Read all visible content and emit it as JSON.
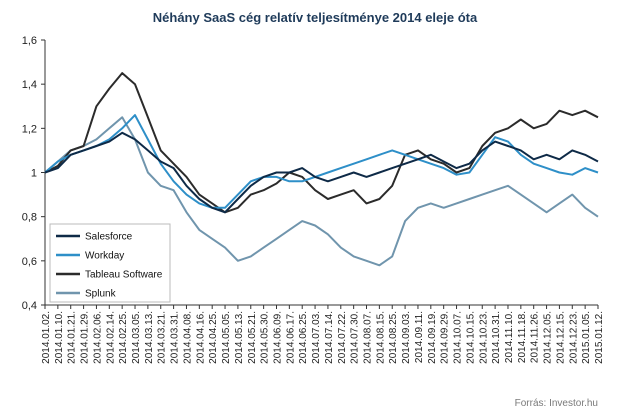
{
  "chart_data": {
    "type": "line",
    "title": "Néhány SaaS cég relatív teljesítménye  2014 eleje óta",
    "source": "Forrás: Investor.hu",
    "ylim": [
      0.4,
      1.6
    ],
    "y_ticks": [
      "0,4",
      "0,6",
      "0,8",
      "1",
      "1,2",
      "1,4",
      "1,6"
    ],
    "y_tick_values": [
      0.4,
      0.6,
      0.8,
      1.0,
      1.2,
      1.4,
      1.6
    ],
    "x": [
      "2014.01.02.",
      "2014.01.10.",
      "2014.01.21.",
      "2014.01.29.",
      "2014.02.06.",
      "2014.02.14.",
      "2014.02.25.",
      "2014.03.05.",
      "2014.03.13.",
      "2014.03.21.",
      "2014.03.31.",
      "2014.04.08.",
      "2014.04.16.",
      "2014.04.25.",
      "2014.05.05.",
      "2014.05.13.",
      "2014.05.21.",
      "2014.05.30.",
      "2014.06.09.",
      "2014.06.17.",
      "2014.06.25.",
      "2014.07.03.",
      "2014.07.14.",
      "2014.07.22.",
      "2014.07.30.",
      "2014.08.07.",
      "2014.08.15.",
      "2014.08.25.",
      "2014.09.03.",
      "2014.09.11.",
      "2014.09.19.",
      "2014.09.29.",
      "2014.10.07.",
      "2014.10.15.",
      "2014.10.23.",
      "2014.10.31.",
      "2014.11.10.",
      "2014.11.18.",
      "2014.11.26.",
      "2014.12.05.",
      "2014.12.15.",
      "2014.12.23.",
      "2015.01.05.",
      "2015.01.12."
    ],
    "legend_position": "lower-left",
    "grid": false,
    "series": [
      {
        "name": "Salesforce",
        "color": "#0e2a47",
        "values": [
          1.0,
          1.02,
          1.08,
          1.1,
          1.12,
          1.14,
          1.18,
          1.15,
          1.1,
          1.05,
          1.02,
          0.94,
          0.88,
          0.84,
          0.82,
          0.88,
          0.94,
          0.98,
          1.0,
          1.0,
          1.02,
          0.98,
          0.96,
          0.98,
          1.0,
          0.98,
          1.0,
          1.02,
          1.04,
          1.06,
          1.08,
          1.05,
          1.02,
          1.04,
          1.1,
          1.14,
          1.12,
          1.1,
          1.06,
          1.08,
          1.06,
          1.1,
          1.08,
          1.05
        ]
      },
      {
        "name": "Workday",
        "color": "#2e8fc8",
        "values": [
          1.0,
          1.05,
          1.08,
          1.1,
          1.12,
          1.15,
          1.2,
          1.26,
          1.15,
          1.04,
          0.96,
          0.9,
          0.86,
          0.84,
          0.84,
          0.9,
          0.96,
          0.98,
          0.98,
          0.96,
          0.96,
          0.98,
          1.0,
          1.02,
          1.04,
          1.06,
          1.08,
          1.1,
          1.08,
          1.06,
          1.04,
          1.02,
          0.99,
          1.0,
          1.08,
          1.16,
          1.14,
          1.08,
          1.04,
          1.02,
          1.0,
          0.99,
          1.02,
          1.0
        ]
      },
      {
        "name": "Tableau Software",
        "color": "#2b2b2b",
        "values": [
          1.0,
          1.03,
          1.1,
          1.12,
          1.3,
          1.38,
          1.45,
          1.4,
          1.25,
          1.1,
          1.04,
          0.98,
          0.9,
          0.86,
          0.82,
          0.84,
          0.9,
          0.92,
          0.95,
          1.0,
          0.98,
          0.92,
          0.88,
          0.9,
          0.92,
          0.86,
          0.88,
          0.94,
          1.08,
          1.1,
          1.06,
          1.04,
          1.0,
          1.02,
          1.12,
          1.18,
          1.2,
          1.24,
          1.2,
          1.22,
          1.28,
          1.26,
          1.28,
          1.25
        ]
      },
      {
        "name": "Splunk",
        "color": "#7095ad",
        "values": [
          1.0,
          1.05,
          1.1,
          1.12,
          1.15,
          1.2,
          1.25,
          1.15,
          1.0,
          0.94,
          0.92,
          0.82,
          0.74,
          0.7,
          0.66,
          0.6,
          0.62,
          0.66,
          0.7,
          0.74,
          0.78,
          0.76,
          0.72,
          0.66,
          0.62,
          0.6,
          0.58,
          0.62,
          0.78,
          0.84,
          0.86,
          0.84,
          0.86,
          0.88,
          0.9,
          0.92,
          0.94,
          0.9,
          0.86,
          0.82,
          0.86,
          0.9,
          0.84,
          0.8
        ]
      }
    ]
  }
}
